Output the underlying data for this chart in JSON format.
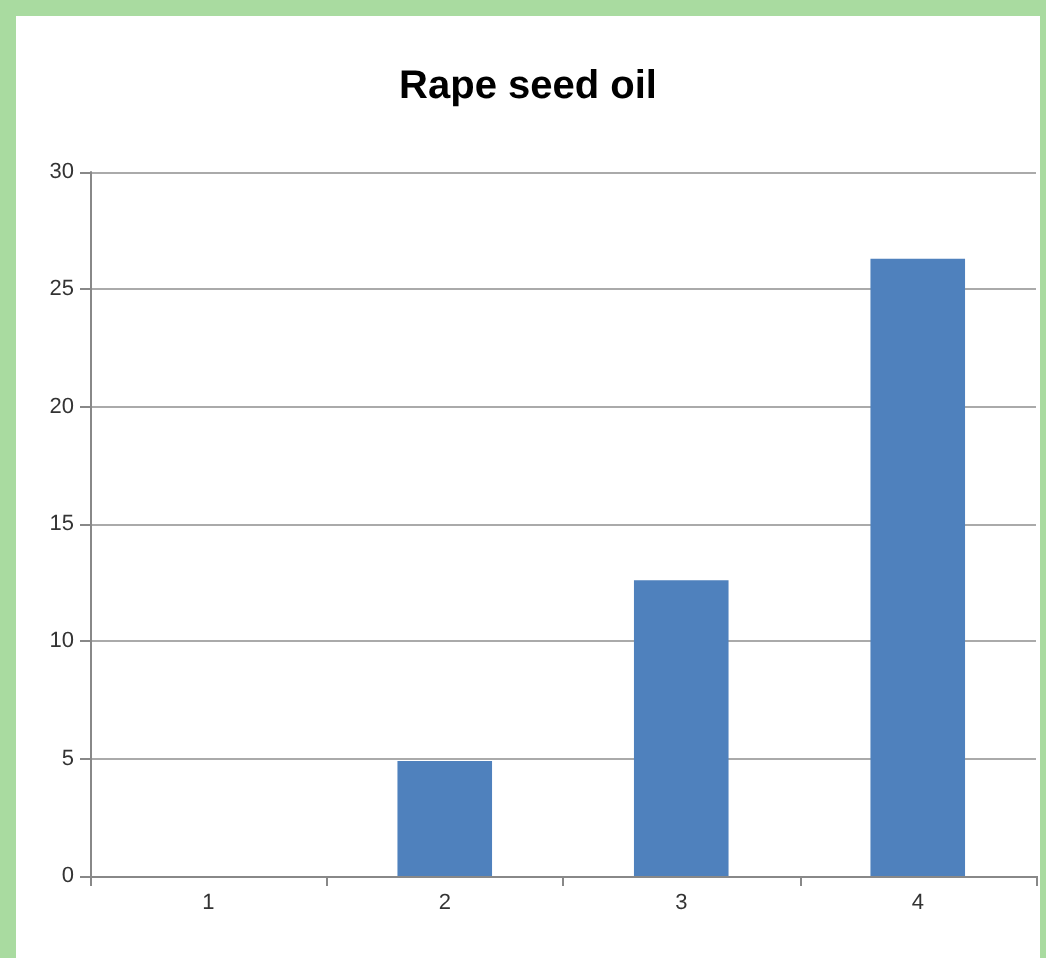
{
  "chart_data": {
    "type": "bar",
    "title": "Rape seed oil",
    "categories": [
      "1",
      "2",
      "3",
      "4"
    ],
    "values": [
      0,
      4.9,
      12.6,
      26.3
    ],
    "color": "#4f81bd",
    "ylim": [
      0,
      30
    ],
    "yticks": [
      0,
      5,
      10,
      15,
      20,
      25,
      30
    ],
    "grid": "y"
  }
}
